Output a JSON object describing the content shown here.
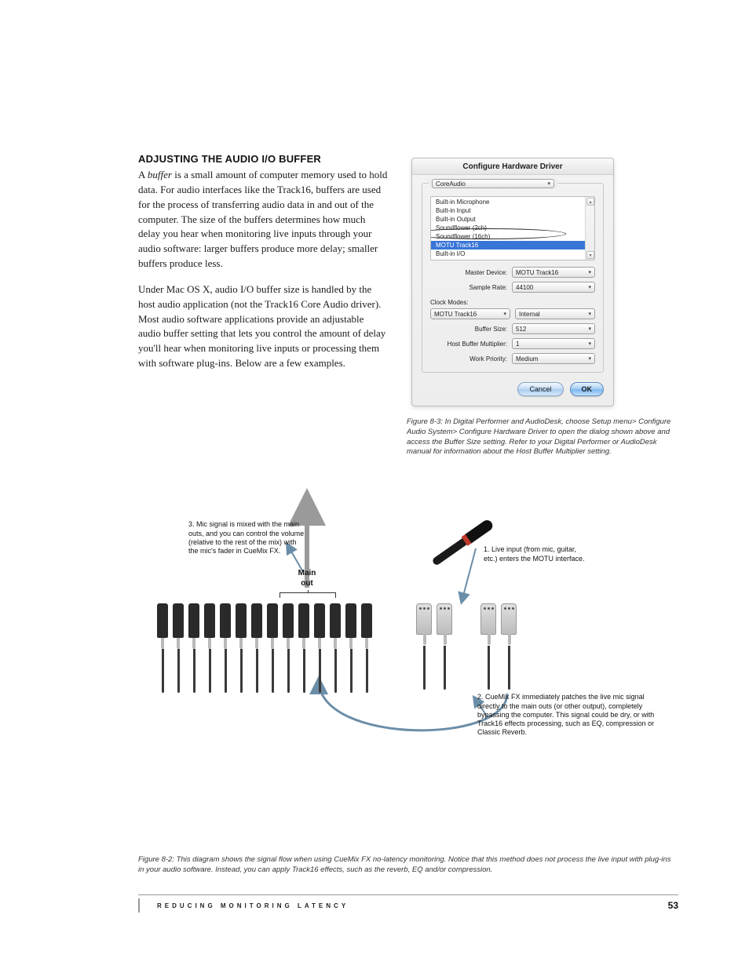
{
  "heading": "ADJUSTING THE AUDIO I/O BUFFER",
  "para1_pre": "A ",
  "para1_em": "buffer",
  "para1_post": " is a small amount of computer memory used to hold data. For audio interfaces like the Track16, buffers are used for the process of transferring audio data in and out of the computer. The size of the buffers determines how much delay you hear when monitoring live inputs through your audio software: larger buffers produce more delay; smaller buffers produce less.",
  "para2": "Under Mac OS X, audio I/O buffer size is handled by the host audio application (not the Track16 Core Audio driver). Most audio software applications provide an adjustable audio buffer setting that lets you control the amount of delay you'll hear when monitoring live inputs or processing them with software plug-ins. Below are a few examples.",
  "dialog": {
    "title": "Configure Hardware Driver",
    "legend": "CoreAudio",
    "devices": [
      "Built-in Microphone",
      "Built-in Input",
      "Built-in Output",
      "Soundflower (2ch)",
      "Soundflower (16ch)",
      "MOTU Track16",
      "Built-in I/O"
    ],
    "selected_device_index": 5,
    "master_device_label": "Master Device:",
    "master_device_value": "MOTU Track16",
    "sample_rate_label": "Sample Rate:",
    "sample_rate_value": "44100",
    "clock_modes_label": "Clock Modes:",
    "clock_left_value": "MOTU Track16",
    "clock_right_value": "Internal",
    "buffer_size_label": "Buffer Size:",
    "buffer_size_value": "512",
    "host_buffer_label": "Host Buffer Multiplier:",
    "host_buffer_value": "1",
    "work_priority_label": "Work Priority:",
    "work_priority_value": "Medium",
    "cancel": "Cancel",
    "ok": "OK"
  },
  "fig83_caption": "Figure 8-3: In Digital Performer and AudioDesk, choose Setup menu> Configure Audio System> Configure Hardware Driver to open the dialog shown above and access the Buffer Size setting. Refer to your Digital Performer or AudioDesk manual for information about the Host Buffer Multiplier setting.",
  "diagram": {
    "ann3": "3. Mic signal is mixed with the main outs, and you can control the volume (relative to the rest of the mix) with the mic's fader in CueMix FX.",
    "main_out": "Main\nout",
    "ann1": "1. Live input (from mic, guitar, etc.) enters the MOTU interface.",
    "ann2": "2. CueMix FX immediately patches the live mic signal directly to the main outs (or other output), completely bypassing the computer. This signal could be dry, or with Track16 effects processing, such as EQ, compression or Classic Reverb.",
    "colors": {
      "arrow_blue": "#6b8ea8",
      "arrow_gray": "#9a9a9a",
      "mic_red": "#c0392b",
      "connector_dark": "#2a2a2a"
    }
  },
  "fig82_caption": "Figure 8-2: This diagram shows the signal flow when using CueMix FX no-latency monitoring. Notice that this method does not process the live input with plug-ins in your audio software. Instead, you can apply Track16 effects, such as the reverb, EQ and/or compression.",
  "footer": {
    "section": "REDUCING MONITORING LATENCY",
    "page": "53"
  }
}
